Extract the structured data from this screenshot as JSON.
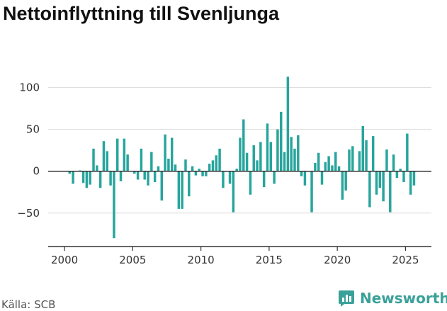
{
  "title": "Nettoinflyttning till Svenljunga",
  "source": "Källa: SCB",
  "brand": {
    "name": "Newsworthy",
    "icon": "chart-logo-icon",
    "color": "#3aa199"
  },
  "colors": {
    "bar": "#27a59c",
    "axis": "#333333",
    "grid": "#d9d9d9"
  },
  "chart_data": {
    "type": "bar",
    "title": "Nettoinflyttning till Svenljunga",
    "xlabel": "",
    "ylabel": "",
    "grid": "horizontal",
    "ylim": [
      -90,
      120
    ],
    "xlim": [
      1998.8,
      2026.9
    ],
    "yticks": [
      -50,
      0,
      50,
      100
    ],
    "ytick_labels": [
      "−50",
      "0",
      "50",
      "100"
    ],
    "xticks": [
      2000,
      2005,
      2010,
      2015,
      2020,
      2025
    ],
    "xtick_labels": [
      "2000",
      "2005",
      "2010",
      "2015",
      "2020",
      "2025"
    ],
    "periods": [
      "2000 Q1",
      "2000 Q2",
      "2000 Q3",
      "2000 Q4",
      "2001 Q1",
      "2001 Q2",
      "2001 Q3",
      "2001 Q4",
      "2002 Q1",
      "2002 Q2",
      "2002 Q3",
      "2002 Q4",
      "2003 Q1",
      "2003 Q2",
      "2003 Q3",
      "2003 Q4",
      "2004 Q1",
      "2004 Q2",
      "2004 Q3",
      "2004 Q4",
      "2005 Q1",
      "2005 Q2",
      "2005 Q3",
      "2005 Q4",
      "2006 Q1",
      "2006 Q2",
      "2006 Q3",
      "2006 Q4",
      "2007 Q1",
      "2007 Q2",
      "2007 Q3",
      "2007 Q4",
      "2008 Q1",
      "2008 Q2",
      "2008 Q3",
      "2008 Q4",
      "2009 Q1",
      "2009 Q2",
      "2009 Q3",
      "2009 Q4",
      "2010 Q1",
      "2010 Q2",
      "2010 Q3",
      "2010 Q4",
      "2011 Q1",
      "2011 Q2",
      "2011 Q3",
      "2011 Q4",
      "2012 Q1",
      "2012 Q2",
      "2012 Q3",
      "2012 Q4",
      "2013 Q1",
      "2013 Q2",
      "2013 Q3",
      "2013 Q4",
      "2014 Q1",
      "2014 Q2",
      "2014 Q3",
      "2014 Q4",
      "2015 Q1",
      "2015 Q2",
      "2015 Q3",
      "2015 Q4",
      "2016 Q1",
      "2016 Q2",
      "2016 Q3",
      "2016 Q4",
      "2017 Q1",
      "2017 Q2",
      "2017 Q3",
      "2017 Q4",
      "2018 Q1",
      "2018 Q2",
      "2018 Q3",
      "2018 Q4",
      "2019 Q1",
      "2019 Q2",
      "2019 Q3",
      "2019 Q4",
      "2020 Q1",
      "2020 Q2",
      "2020 Q3",
      "2020 Q4",
      "2021 Q1",
      "2021 Q2",
      "2021 Q3",
      "2021 Q4",
      "2022 Q1",
      "2022 Q2",
      "2022 Q3",
      "2022 Q4",
      "2023 Q1",
      "2023 Q2",
      "2023 Q3",
      "2023 Q4",
      "2024 Q1",
      "2024 Q2",
      "2024 Q3",
      "2024 Q4",
      "2025 Q1",
      "2025 Q2",
      "2025 Q3",
      "2025 Q4"
    ],
    "values": [
      0,
      -3,
      -15,
      0,
      1,
      -14,
      -20,
      -16,
      27,
      7,
      -20,
      36,
      24,
      -17,
      -80,
      39,
      -12,
      39,
      20,
      0,
      -3,
      -10,
      27,
      -10,
      -17,
      23,
      -13,
      6,
      -35,
      44,
      15,
      40,
      8,
      -45,
      -45,
      14,
      -30,
      6,
      -5,
      3,
      -6,
      -6,
      9,
      13,
      19,
      27,
      -20,
      0,
      -15,
      -49,
      3,
      40,
      62,
      22,
      -28,
      31,
      13,
      35,
      -19,
      57,
      35,
      -15,
      50,
      71,
      23,
      113,
      41,
      27,
      43,
      -6,
      -17,
      0,
      -49,
      10,
      22,
      -16,
      11,
      18,
      7,
      23,
      6,
      -34,
      -23,
      26,
      30,
      0,
      24,
      54,
      37,
      -43,
      42,
      -28,
      -20,
      -36,
      26,
      -49,
      20,
      -8,
      3,
      -13,
      45,
      -28,
      -17,
      0
    ]
  }
}
